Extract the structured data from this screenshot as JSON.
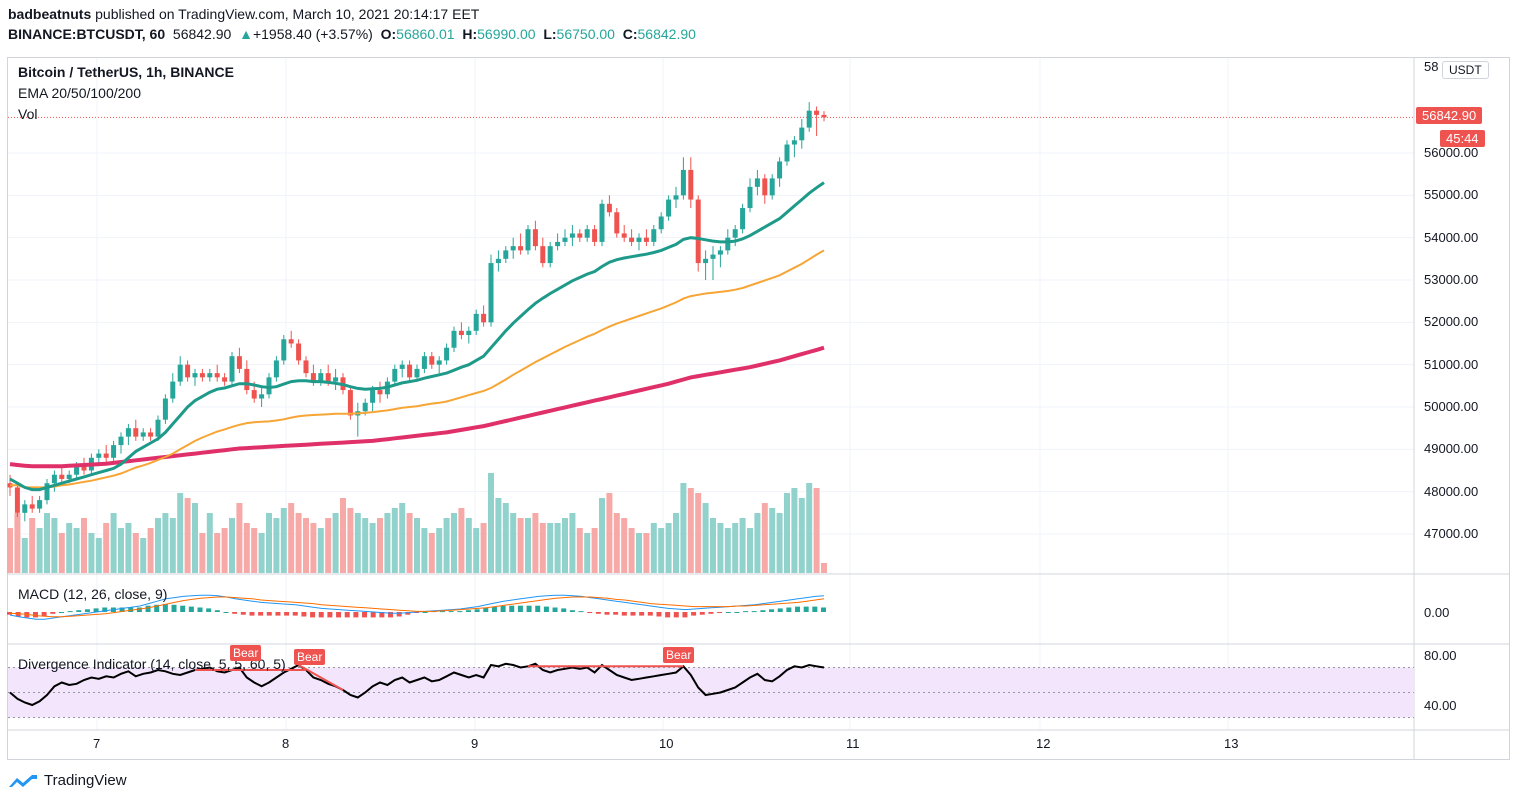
{
  "header": {
    "author": "badbeatnuts",
    "published": "published on TradingView.com, March 10, 2021 20:14:17 EET",
    "symbol": "BINANCE:BTCUSDT, 60",
    "last": "56842.90",
    "change_arrow": "▲",
    "change": "+1958.40 (+3.57%)",
    "o_label": "O:",
    "o": "56860.01",
    "h_label": "H:",
    "h": "56990.00",
    "l_label": "L:",
    "l": "56750.00",
    "c_label": "C:",
    "c": "56842.90"
  },
  "legend": {
    "title": "Bitcoin / TetherUS, 1h, BINANCE",
    "ema": "EMA 20/50/100/200",
    "vol": "Vol",
    "macd": "MACD (12, 26, close, 9)",
    "divergence": "Divergence Indicator (14, close, 5, 5, 60, 5)"
  },
  "price_axis": {
    "currency_button": "USDT",
    "top_cut": "58",
    "ticks": [
      "56000.00",
      "55000.00",
      "54000.00",
      "53000.00",
      "52000.00",
      "51000.00",
      "50000.00",
      "49000.00",
      "48000.00",
      "47000.00"
    ],
    "last_price_tag": "56842.90",
    "countdown_tag": "45:44"
  },
  "macd_axis": {
    "ticks": [
      "0.00"
    ]
  },
  "rsi_axis": {
    "ticks": [
      "80.00",
      "40.00"
    ]
  },
  "time_axis": {
    "ticks": [
      "7",
      "8",
      "9",
      "10",
      "11",
      "12",
      "13"
    ]
  },
  "bear_labels": [
    "Bear",
    "Bear",
    "Bear"
  ],
  "branding": {
    "logo_text": "TradingView"
  },
  "colors": {
    "up": "#26a69a",
    "down": "#ef5350",
    "ema20": "#1e9a8a",
    "ema50": "#f7a534",
    "ema100": "#e0306a",
    "macd": "#2196f3",
    "signal": "#ff6d00",
    "rsi_band": "#f3e5fb"
  },
  "chart_data": {
    "type": "candlestick",
    "interval": "1h",
    "price_range": [
      46500,
      58000
    ],
    "ohlc": [
      [
        48200,
        48400,
        47900,
        48100
      ],
      [
        48100,
        48200,
        47400,
        47500
      ],
      [
        47500,
        47800,
        47300,
        47700
      ],
      [
        47700,
        47900,
        47500,
        47600
      ],
      [
        47600,
        47900,
        47500,
        47800
      ],
      [
        47800,
        48300,
        47700,
        48200
      ],
      [
        48200,
        48500,
        48000,
        48400
      ],
      [
        48400,
        48600,
        48200,
        48300
      ],
      [
        48300,
        48500,
        48200,
        48400
      ],
      [
        48400,
        48700,
        48300,
        48600
      ],
      [
        48600,
        48800,
        48400,
        48500
      ],
      [
        48500,
        48900,
        48400,
        48800
      ],
      [
        48800,
        49000,
        48600,
        48900
      ],
      [
        48900,
        49100,
        48700,
        48800
      ],
      [
        48800,
        49200,
        48700,
        49100
      ],
      [
        49100,
        49400,
        48900,
        49300
      ],
      [
        49300,
        49600,
        49100,
        49500
      ],
      [
        49500,
        49700,
        49200,
        49300
      ],
      [
        49300,
        49500,
        49200,
        49400
      ],
      [
        49400,
        49500,
        49200,
        49300
      ],
      [
        49300,
        49800,
        49200,
        49700
      ],
      [
        49700,
        50300,
        49600,
        50200
      ],
      [
        50200,
        50800,
        50100,
        50600
      ],
      [
        50600,
        51200,
        50500,
        51000
      ],
      [
        51000,
        51100,
        50600,
        50700
      ],
      [
        50700,
        50900,
        50500,
        50800
      ],
      [
        50800,
        50900,
        50600,
        50700
      ],
      [
        50700,
        50900,
        50600,
        50800
      ],
      [
        50800,
        51000,
        50600,
        50700
      ],
      [
        50700,
        50800,
        50500,
        50600
      ],
      [
        50600,
        51300,
        50500,
        51200
      ],
      [
        51200,
        51400,
        50800,
        50900
      ],
      [
        50900,
        51100,
        50300,
        50400
      ],
      [
        50400,
        50600,
        50100,
        50200
      ],
      [
        50200,
        50500,
        50000,
        50300
      ],
      [
        50300,
        50800,
        50200,
        50700
      ],
      [
        50700,
        51200,
        50600,
        51100
      ],
      [
        51100,
        51700,
        51000,
        51600
      ],
      [
        51600,
        51800,
        51400,
        51500
      ],
      [
        51500,
        51600,
        51000,
        51100
      ],
      [
        51100,
        51200,
        50700,
        50800
      ],
      [
        50800,
        51000,
        50500,
        50600
      ],
      [
        50600,
        50900,
        50500,
        50800
      ],
      [
        50800,
        51000,
        50500,
        50600
      ],
      [
        50600,
        50900,
        50400,
        50700
      ],
      [
        50700,
        50800,
        50300,
        50400
      ],
      [
        50400,
        50500,
        49700,
        49800
      ],
      [
        49800,
        50100,
        49300,
        49900
      ],
      [
        49900,
        50200,
        49800,
        50100
      ],
      [
        50100,
        50500,
        49900,
        50400
      ],
      [
        50400,
        50600,
        50100,
        50300
      ],
      [
        50300,
        50700,
        50200,
        50600
      ],
      [
        50600,
        51000,
        50500,
        50900
      ],
      [
        50900,
        51100,
        50700,
        51000
      ],
      [
        51000,
        51100,
        50600,
        50700
      ],
      [
        50700,
        51000,
        50600,
        50900
      ],
      [
        50900,
        51300,
        50800,
        51200
      ],
      [
        51200,
        51300,
        50900,
        51000
      ],
      [
        51000,
        51200,
        50800,
        51100
      ],
      [
        51100,
        51500,
        51000,
        51400
      ],
      [
        51400,
        51900,
        51300,
        51800
      ],
      [
        51800,
        52000,
        51600,
        51700
      ],
      [
        51700,
        51900,
        51500,
        51800
      ],
      [
        51800,
        52300,
        51700,
        52200
      ],
      [
        52200,
        52400,
        51900,
        52000
      ],
      [
        52000,
        53600,
        51900,
        53400
      ],
      [
        53400,
        53700,
        53200,
        53500
      ],
      [
        53500,
        53800,
        53400,
        53700
      ],
      [
        53700,
        54000,
        53500,
        53800
      ],
      [
        53800,
        54100,
        53600,
        53700
      ],
      [
        53700,
        54300,
        53600,
        54200
      ],
      [
        54200,
        54400,
        53700,
        53800
      ],
      [
        53800,
        54000,
        53300,
        53400
      ],
      [
        53400,
        53900,
        53300,
        53800
      ],
      [
        53800,
        54100,
        53700,
        53900
      ],
      [
        53900,
        54200,
        53800,
        54000
      ],
      [
        54000,
        54300,
        53800,
        54100
      ],
      [
        54100,
        54200,
        53900,
        54000
      ],
      [
        54000,
        54300,
        53900,
        54200
      ],
      [
        54200,
        54300,
        53800,
        53900
      ],
      [
        53900,
        54900,
        53800,
        54800
      ],
      [
        54800,
        55000,
        54500,
        54600
      ],
      [
        54600,
        54700,
        54000,
        54100
      ],
      [
        54100,
        54300,
        53900,
        54000
      ],
      [
        54000,
        54200,
        53800,
        53900
      ],
      [
        53900,
        54100,
        53700,
        54000
      ],
      [
        54000,
        54200,
        53800,
        53900
      ],
      [
        53900,
        54300,
        53800,
        54200
      ],
      [
        54200,
        54600,
        54100,
        54500
      ],
      [
        54500,
        55000,
        54400,
        54900
      ],
      [
        54900,
        55200,
        54700,
        55000
      ],
      [
        55000,
        55900,
        54900,
        55600
      ],
      [
        55600,
        55900,
        54700,
        54900
      ],
      [
        54900,
        55000,
        53200,
        53400
      ],
      [
        53400,
        53700,
        53000,
        53500
      ],
      [
        53500,
        53800,
        53000,
        53600
      ],
      [
        53600,
        53800,
        53300,
        53700
      ],
      [
        53700,
        54200,
        53600,
        54000
      ],
      [
        54000,
        54300,
        53800,
        54200
      ],
      [
        54200,
        54800,
        54100,
        54700
      ],
      [
        54700,
        55400,
        54600,
        55200
      ],
      [
        55200,
        55600,
        55000,
        55400
      ],
      [
        55400,
        55500,
        54800,
        55000
      ],
      [
        55000,
        55500,
        54900,
        55400
      ],
      [
        55400,
        55900,
        55200,
        55800
      ],
      [
        55800,
        56300,
        55700,
        56200
      ],
      [
        56200,
        56400,
        55900,
        56300
      ],
      [
        56300,
        56800,
        56100,
        56600
      ],
      [
        56600,
        57200,
        56500,
        57000
      ],
      [
        57000,
        57100,
        56400,
        56900
      ],
      [
        56900,
        56990,
        56750,
        56843
      ]
    ],
    "ema20": [
      48300,
      48200,
      48100,
      48050,
      48050,
      48100,
      48150,
      48200,
      48250,
      48300,
      48350,
      48400,
      48450,
      48500,
      48550,
      48650,
      48800,
      48950,
      49050,
      49150,
      49250,
      49400,
      49600,
      49800,
      50000,
      50150,
      50250,
      50350,
      50420,
      50450,
      50500,
      50550,
      50550,
      50520,
      50480,
      50460,
      50480,
      50540,
      50600,
      50620,
      50620,
      50600,
      50600,
      50580,
      50560,
      50530,
      50480,
      50440,
      50420,
      50430,
      50440,
      50470,
      50520,
      50570,
      50600,
      50630,
      50680,
      50720,
      50760,
      50800,
      50870,
      50940,
      51000,
      51100,
      51200,
      51400,
      51600,
      51800,
      51980,
      52140,
      52300,
      52450,
      52570,
      52680,
      52780,
      52880,
      52980,
      53060,
      53140,
      53200,
      53320,
      53420,
      53480,
      53520,
      53550,
      53580,
      53610,
      53650,
      53700,
      53770,
      53840,
      53960,
      54000,
      53980,
      53950,
      53920,
      53900,
      53900,
      53920,
      53970,
      54050,
      54150,
      54250,
      54350,
      54450,
      54600,
      54750,
      54900,
      55050,
      55180,
      55300
    ],
    "ema50": [
      48150,
      48150,
      48100,
      48100,
      48100,
      48100,
      48120,
      48150,
      48170,
      48200,
      48230,
      48260,
      48300,
      48340,
      48380,
      48430,
      48500,
      48570,
      48620,
      48680,
      48750,
      48820,
      48900,
      49000,
      49100,
      49200,
      49280,
      49350,
      49420,
      49470,
      49530,
      49580,
      49620,
      49640,
      49650,
      49660,
      49680,
      49710,
      49750,
      49780,
      49800,
      49810,
      49820,
      49830,
      49840,
      49840,
      49840,
      49850,
      49860,
      49880,
      49900,
      49920,
      49950,
      49980,
      50000,
      50020,
      50050,
      50080,
      50100,
      50130,
      50180,
      50230,
      50280,
      50330,
      50380,
      50450,
      50550,
      50650,
      50760,
      50860,
      50960,
      51060,
      51150,
      51240,
      51330,
      51420,
      51500,
      51580,
      51660,
      51730,
      51820,
      51900,
      51970,
      52030,
      52090,
      52150,
      52210,
      52270,
      52330,
      52400,
      52470,
      52560,
      52620,
      52650,
      52680,
      52700,
      52720,
      52740,
      52770,
      52810,
      52870,
      52930,
      52990,
      53050,
      53110,
      53200,
      53290,
      53380,
      53490,
      53600,
      53700
    ],
    "ema100": [
      48650,
      48630,
      48610,
      48600,
      48600,
      48600,
      48600,
      48600,
      48610,
      48620,
      48630,
      48640,
      48650,
      48660,
      48680,
      48700,
      48720,
      48740,
      48760,
      48780,
      48800,
      48820,
      48840,
      48860,
      48880,
      48900,
      48920,
      48940,
      48960,
      48980,
      49000,
      49020,
      49030,
      49040,
      49050,
      49060,
      49070,
      49080,
      49090,
      49100,
      49110,
      49120,
      49130,
      49140,
      49150,
      49160,
      49170,
      49180,
      49190,
      49200,
      49220,
      49240,
      49260,
      49280,
      49300,
      49320,
      49340,
      49360,
      49380,
      49400,
      49430,
      49460,
      49490,
      49520,
      49550,
      49590,
      49630,
      49670,
      49710,
      49750,
      49790,
      49830,
      49870,
      49910,
      49950,
      49990,
      50030,
      50070,
      50110,
      50150,
      50190,
      50230,
      50270,
      50310,
      50350,
      50390,
      50430,
      50470,
      50510,
      50550,
      50600,
      50650,
      50700,
      50730,
      50760,
      50790,
      50820,
      50850,
      50880,
      50910,
      50940,
      50980,
      51020,
      51060,
      51100,
      51150,
      51200,
      51250,
      51300,
      51350,
      51400
    ],
    "volume": [
      45,
      60,
      35,
      55,
      45,
      60,
      55,
      40,
      50,
      45,
      55,
      40,
      35,
      50,
      60,
      45,
      50,
      40,
      35,
      45,
      55,
      60,
      55,
      80,
      75,
      70,
      40,
      60,
      40,
      45,
      55,
      70,
      50,
      45,
      40,
      60,
      55,
      65,
      70,
      60,
      55,
      50,
      45,
      55,
      60,
      75,
      65,
      60,
      55,
      50,
      55,
      60,
      65,
      70,
      60,
      55,
      45,
      40,
      45,
      55,
      60,
      65,
      55,
      45,
      50,
      100,
      75,
      70,
      60,
      55,
      55,
      60,
      50,
      50,
      50,
      55,
      60,
      45,
      40,
      45,
      75,
      80,
      60,
      55,
      45,
      40,
      40,
      50,
      45,
      50,
      60,
      90,
      85,
      80,
      70,
      55,
      50,
      45,
      50,
      55,
      45,
      60,
      70,
      65,
      60,
      80,
      85,
      75,
      90,
      85,
      10
    ],
    "macd": [
      -5,
      -8,
      -10,
      -12,
      -12,
      -10,
      -8,
      -6,
      -4,
      -2,
      0,
      2,
      4,
      6,
      8,
      10,
      14,
      18,
      22,
      24,
      26,
      27,
      28,
      28,
      27,
      25,
      22,
      20,
      18,
      16,
      15,
      14,
      13,
      12,
      10,
      8,
      6,
      5,
      4,
      3,
      2,
      1,
      0,
      -1,
      -2,
      -2,
      -1,
      0,
      1,
      2,
      3,
      4,
      5,
      7,
      9,
      12,
      15,
      18,
      20,
      22,
      24,
      26,
      27,
      28,
      28,
      27,
      26,
      24,
      22,
      20,
      18,
      16,
      14,
      12,
      10,
      8,
      6,
      5,
      4,
      5,
      6,
      7,
      8,
      9,
      10,
      11,
      12,
      14,
      16,
      18,
      20,
      22,
      24,
      26,
      27
    ],
    "signal": [
      -2,
      -3,
      -4,
      -6,
      -7,
      -8,
      -8,
      -7,
      -6,
      -5,
      -4,
      -3,
      -1,
      1,
      3,
      5,
      7,
      10,
      13,
      16,
      19,
      21,
      23,
      24,
      25,
      25,
      24,
      23,
      22,
      20,
      19,
      18,
      17,
      16,
      15,
      14,
      12,
      11,
      10,
      9,
      8,
      7,
      6,
      5,
      4,
      3,
      2,
      1,
      1,
      1,
      2,
      3,
      4,
      5,
      6,
      7,
      9,
      11,
      13,
      15,
      17,
      19,
      21,
      23,
      24,
      25,
      25,
      25,
      24,
      23,
      21,
      20,
      18,
      16,
      14,
      13,
      12,
      11,
      10,
      9,
      9,
      9,
      9,
      9,
      10,
      10,
      11,
      12,
      13,
      14,
      15,
      16,
      18,
      20,
      22
    ],
    "rsi": [
      50,
      45,
      42,
      40,
      43,
      48,
      55,
      58,
      56,
      57,
      60,
      62,
      61,
      63,
      62,
      65,
      67,
      63,
      65,
      66,
      68,
      67,
      65,
      64,
      66,
      68,
      69,
      70,
      67,
      66,
      68,
      70,
      62,
      58,
      55,
      58,
      62,
      66,
      69,
      72,
      68,
      62,
      60,
      57,
      55,
      52,
      48,
      46,
      50,
      55,
      58,
      56,
      60,
      62,
      58,
      60,
      62,
      59,
      60,
      63,
      66,
      64,
      62,
      64,
      62,
      72,
      71,
      73,
      72,
      70,
      71,
      73,
      68,
      66,
      68,
      69,
      70,
      69,
      70,
      66,
      72,
      68,
      64,
      62,
      60,
      61,
      62,
      63,
      64,
      65,
      66,
      71,
      64,
      54,
      48,
      49,
      50,
      52,
      54,
      58,
      62,
      65,
      60,
      59,
      63,
      68,
      71,
      70,
      72,
      71,
      70
    ]
  }
}
